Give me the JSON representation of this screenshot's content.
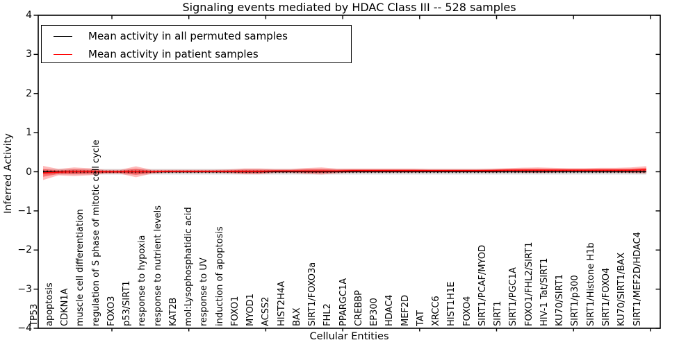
{
  "title": "Signaling events mediated by HDAC Class III -- 528 samples",
  "axes": {
    "x_label": "Cellular Entities",
    "y_label": "Inferred Activity"
  },
  "legend": {
    "items": [
      {
        "label": "Mean activity in all permuted samples",
        "color": "#000000"
      },
      {
        "label": "Mean activity in patient samples",
        "color": "#ff0000"
      }
    ]
  },
  "chart_data": {
    "type": "line",
    "title": "Signaling events mediated by HDAC Class III -- 528 samples",
    "xlabel": "Cellular Entities",
    "ylabel": "Inferred Activity",
    "ylim": [
      -4,
      4
    ],
    "yticks": [
      4,
      3,
      2,
      1,
      0,
      -1,
      -2,
      -3,
      -4
    ],
    "ytick_labels": [
      "4",
      "3",
      "2",
      "1",
      "0",
      "−1",
      "−2",
      "−3",
      "−4"
    ],
    "grid": false,
    "legend_position": "upper left",
    "categories": [
      "TP53",
      "apoptosis",
      "CDKN1A",
      "muscle cell differentiation",
      "regulation of S phase of mitotic cell cycle",
      "FOXO3",
      "p53/SIRT1",
      "response to hypoxia",
      "response to nutrient levels",
      "KAT2B",
      "mol:Lysophosphatidic acid",
      "response to UV",
      "induction of apoptosis",
      "FOXO1",
      "MYOD1",
      "ACSS2",
      "HIST2H4A",
      "BAX",
      "SIRT1/FOXO3a",
      "FHL2",
      "PPARGC1A",
      "CREBBP",
      "EP300",
      "HDAC4",
      "MEF2D",
      "TAT",
      "XRCC6",
      "HIST1H1E",
      "FOXO4",
      "SIRT1/PCAF/MYOD",
      "SIRT1",
      "SIRT1/PGC1A",
      "FOXO1/FHL2/SIRT1",
      "HIV-1 Tat/SIRT1",
      "KU70/SIRT1",
      "SIRT1/p300",
      "SIRT1/Histone H1b",
      "SIRT1/FOXO4",
      "KU70/SIRT1/BAX",
      "SIRT1/MEF2D/HDAC4"
    ],
    "series": [
      {
        "name": "Mean activity in all permuted samples",
        "color": "#000000",
        "values": [
          0,
          0,
          0,
          0,
          0,
          0,
          0,
          0,
          0,
          0,
          0,
          0,
          0,
          0,
          0,
          0,
          0,
          0,
          0,
          0,
          0,
          0,
          0,
          0,
          0,
          0,
          0,
          0,
          0,
          0,
          0,
          0,
          0,
          0,
          0,
          0,
          0,
          0,
          0,
          0
        ],
        "std_band": [
          0.07,
          0.07,
          0.07,
          0.07,
          0.07,
          0.07,
          0.07,
          0.07,
          0.07,
          0.07,
          0.07,
          0.07,
          0.07,
          0.07,
          0.07,
          0.07,
          0.07,
          0.07,
          0.07,
          0.07,
          0.07,
          0.07,
          0.07,
          0.07,
          0.07,
          0.07,
          0.07,
          0.07,
          0.07,
          0.07,
          0.07,
          0.07,
          0.07,
          0.07,
          0.07,
          0.07,
          0.07,
          0.07,
          0.07,
          0.07
        ]
      },
      {
        "name": "Mean activity in patient samples",
        "color": "#ff0000",
        "values": [
          -0.03,
          -0.01,
          0,
          0,
          0,
          0,
          0,
          0,
          0.01,
          0.01,
          0.01,
          0.01,
          0.01,
          0.01,
          0.01,
          0.02,
          0.02,
          0.02,
          0.02,
          0.02,
          0.03,
          0.03,
          0.03,
          0.03,
          0.03,
          0.03,
          0.03,
          0.03,
          0.03,
          0.03,
          0.04,
          0.04,
          0.04,
          0.04,
          0.04,
          0.04,
          0.04,
          0.04,
          0.04,
          0.05
        ],
        "std_band": [
          0.18,
          0.08,
          0.11,
          0.09,
          0.05,
          0.05,
          0.14,
          0.05,
          0.04,
          0.04,
          0.04,
          0.04,
          0.05,
          0.075,
          0.075,
          0.05,
          0.05,
          0.075,
          0.09,
          0.06,
          0.05,
          0.05,
          0.05,
          0.05,
          0.05,
          0.04,
          0.04,
          0.04,
          0.04,
          0.05,
          0.05,
          0.065,
          0.07,
          0.06,
          0.05,
          0.05,
          0.06,
          0.06,
          0.07,
          0.095
        ]
      }
    ]
  }
}
